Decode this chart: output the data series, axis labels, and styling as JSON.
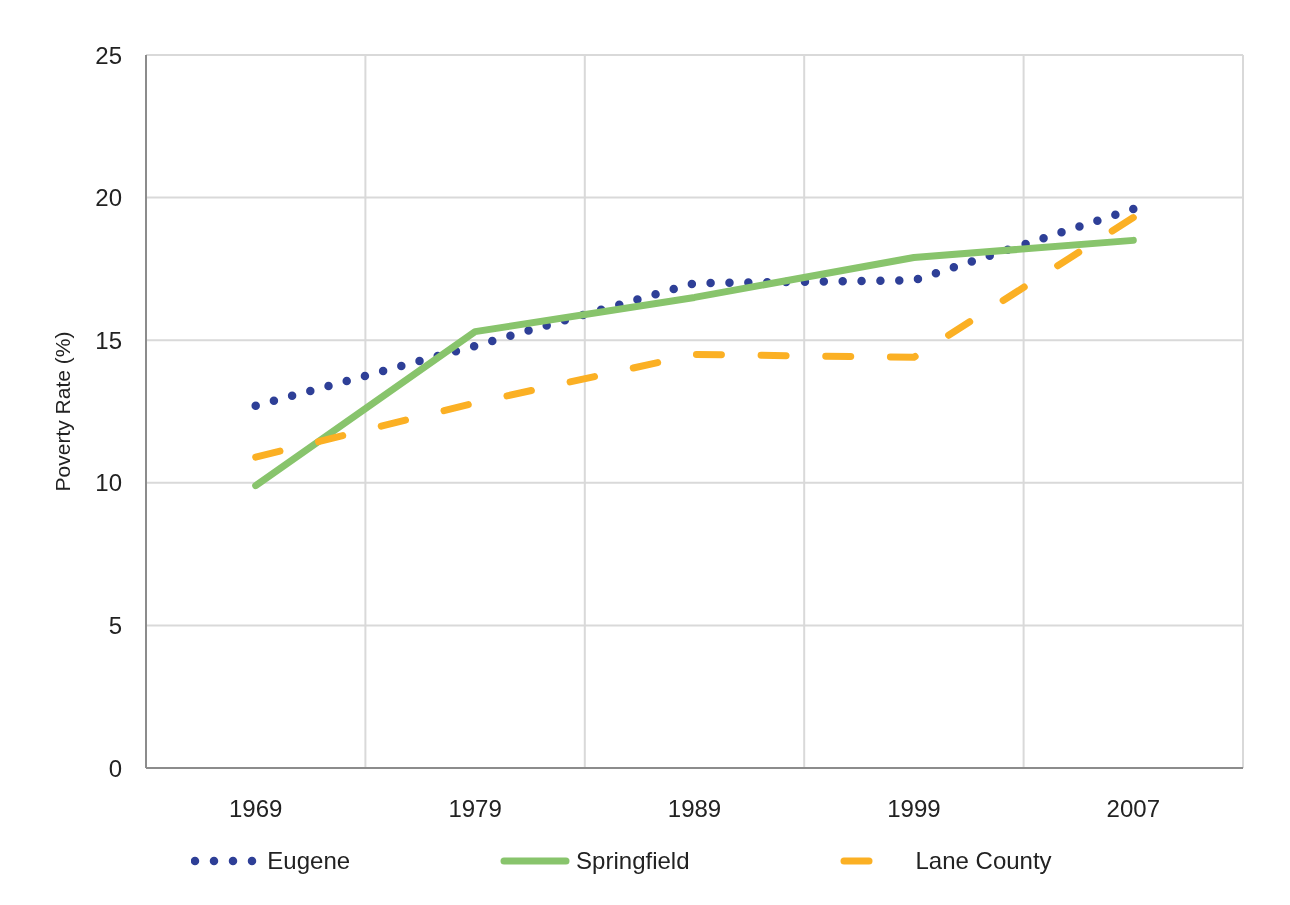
{
  "chart_data": {
    "type": "line",
    "ylabel": "Poverty Rate (%)",
    "categories": [
      "1969",
      "1979",
      "1989",
      "1999",
      "2007"
    ],
    "series": [
      {
        "name": "Eugene",
        "color": "#2e3f97",
        "line_style": "dotted",
        "values": [
          12.7,
          14.8,
          17.0,
          17.1,
          19.6
        ]
      },
      {
        "name": "Springfield",
        "color": "#88c46c",
        "line_style": "solid",
        "values": [
          9.9,
          15.3,
          16.5,
          17.9,
          18.5
        ]
      },
      {
        "name": "Lane County",
        "color": "#fbb024",
        "line_style": "dashed",
        "values": [
          10.9,
          12.8,
          14.5,
          14.4,
          19.3
        ]
      }
    ],
    "ylim": [
      0,
      25
    ],
    "yticks": [
      0,
      5,
      10,
      15,
      20,
      25
    ],
    "grid": true,
    "legend": "bottom"
  }
}
